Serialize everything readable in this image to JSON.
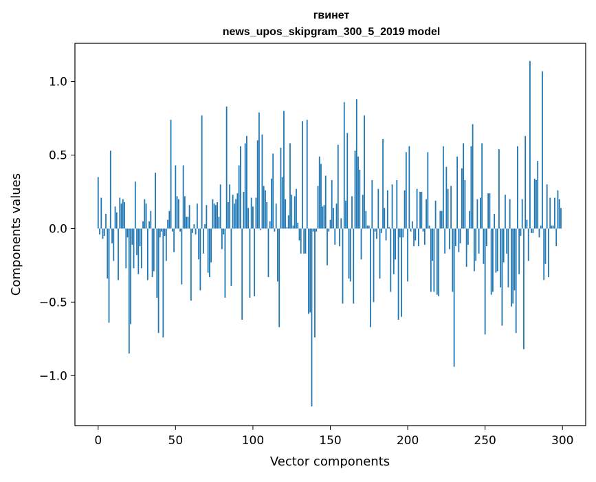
{
  "chart_data": {
    "type": "bar",
    "title_lines": [
      "гвинет",
      "news_upos_skipgram_300_5_2019 model"
    ],
    "xlabel": "Vector components",
    "ylabel": "Components values",
    "xlim": [
      -15,
      315
    ],
    "ylim": [
      -1.34,
      1.26
    ],
    "x_ticks": [
      0,
      50,
      100,
      150,
      200,
      250,
      300
    ],
    "x_tick_labels": [
      "0",
      "50",
      "100",
      "150",
      "200",
      "250",
      "300"
    ],
    "y_ticks": [
      -1.0,
      -0.5,
      0.0,
      0.5,
      1.0
    ],
    "y_tick_labels": [
      "−1.0",
      "−0.5",
      "0.0",
      "0.5",
      "1.0"
    ],
    "grid": false,
    "bar_color": "#1f77b4",
    "x": [
      0,
      1,
      2,
      3,
      4,
      5,
      6,
      7,
      8,
      9,
      10,
      11,
      12,
      13,
      14,
      15,
      16,
      17,
      18,
      19,
      20,
      21,
      22,
      23,
      24,
      25,
      26,
      27,
      28,
      29,
      30,
      31,
      32,
      33,
      34,
      35,
      36,
      37,
      38,
      39,
      40,
      41,
      42,
      43,
      44,
      45,
      46,
      47,
      48,
      49,
      50,
      51,
      52,
      53,
      54,
      55,
      56,
      57,
      58,
      59,
      60,
      61,
      62,
      63,
      64,
      65,
      66,
      67,
      68,
      69,
      70,
      71,
      72,
      73,
      74,
      75,
      76,
      77,
      78,
      79,
      80,
      81,
      82,
      83,
      84,
      85,
      86,
      87,
      88,
      89,
      90,
      91,
      92,
      93,
      94,
      95,
      96,
      97,
      98,
      99,
      100,
      101,
      102,
      103,
      104,
      105,
      106,
      107,
      108,
      109,
      110,
      111,
      112,
      113,
      114,
      115,
      116,
      117,
      118,
      119,
      120,
      121,
      122,
      123,
      124,
      125,
      126,
      127,
      128,
      129,
      130,
      131,
      132,
      133,
      134,
      135,
      136,
      137,
      138,
      139,
      140,
      141,
      142,
      143,
      144,
      145,
      146,
      147,
      148,
      149,
      150,
      151,
      152,
      153,
      154,
      155,
      156,
      157,
      158,
      159,
      160,
      161,
      162,
      163,
      164,
      165,
      166,
      167,
      168,
      169,
      170,
      171,
      172,
      173,
      174,
      175,
      176,
      177,
      178,
      179,
      180,
      181,
      182,
      183,
      184,
      185,
      186,
      187,
      188,
      189,
      190,
      191,
      192,
      193,
      194,
      195,
      196,
      197,
      198,
      199,
      200,
      201,
      202,
      203,
      204,
      205,
      206,
      207,
      208,
      209,
      210,
      211,
      212,
      213,
      214,
      215,
      216,
      217,
      218,
      219,
      220,
      221,
      222,
      223,
      224,
      225,
      226,
      227,
      228,
      229,
      230,
      231,
      232,
      233,
      234,
      235,
      236,
      237,
      238,
      239,
      240,
      241,
      242,
      243,
      244,
      245,
      246,
      247,
      248,
      249,
      250,
      251,
      252,
      253,
      254,
      255,
      256,
      257,
      258,
      259,
      260,
      261,
      262,
      263,
      264,
      265,
      266,
      267,
      268,
      269,
      270,
      271,
      272,
      273,
      274,
      275,
      276,
      277,
      278,
      279,
      280,
      281,
      282,
      283,
      284,
      285,
      286,
      287,
      288,
      289,
      290,
      291,
      292,
      293,
      294,
      295,
      296,
      297,
      298,
      299
    ],
    "values": [
      0.35,
      -0.04,
      0.21,
      -0.07,
      -0.05,
      0.1,
      -0.34,
      -0.64,
      0.53,
      -0.1,
      -0.22,
      0.15,
      0.11,
      -0.35,
      0.21,
      0.17,
      0.2,
      0.18,
      -0.27,
      -0.06,
      -0.85,
      -0.65,
      -0.11,
      -0.27,
      0.32,
      -0.18,
      -0.31,
      -0.12,
      -0.27,
      0.05,
      0.2,
      0.17,
      -0.35,
      0.05,
      0.12,
      -0.33,
      -0.29,
      0.38,
      -0.47,
      -0.71,
      -0.06,
      -0.02,
      -0.74,
      -0.05,
      -0.22,
      0.06,
      0.12,
      0.74,
      -0.02,
      -0.16,
      0.43,
      0.22,
      0.2,
      -0.02,
      -0.38,
      0.43,
      0.22,
      0.08,
      0.08,
      0.16,
      -0.49,
      -0.03,
      0.03,
      -0.04,
      0.17,
      -0.21,
      -0.42,
      0.77,
      -0.17,
      0.03,
      0.16,
      -0.3,
      -0.33,
      -0.23,
      0.2,
      0.17,
      0.16,
      0.18,
      0.08,
      0.3,
      -0.14,
      -0.04,
      -0.47,
      0.83,
      0.18,
      0.3,
      -0.39,
      0.23,
      0.17,
      0.2,
      0.24,
      0.43,
      0.56,
      -0.62,
      0.25,
      0.58,
      0.63,
      0.14,
      -0.47,
      0.21,
      0.15,
      -0.46,
      0.21,
      0.6,
      0.79,
      -0.01,
      0.64,
      0.29,
      0.26,
      0.18,
      -0.33,
      0.05,
      0.34,
      0.51,
      -0.02,
      0.17,
      -0.36,
      -0.67,
      0.55,
      0.35,
      0.8,
      0.2,
      0.01,
      0.09,
      0.58,
      0.23,
      0.02,
      0.22,
      0.27,
      0.04,
      -0.08,
      -0.17,
      0.73,
      -0.17,
      -0.17,
      0.74,
      -0.58,
      -0.57,
      -1.21,
      -0.02,
      -0.74,
      -0.02,
      0.29,
      0.49,
      0.44,
      0.15,
      0.16,
      0.36,
      -0.25,
      -0.02,
      0.06,
      0.33,
      0.14,
      -0.11,
      0.17,
      0.57,
      -0.12,
      0.07,
      -0.51,
      0.86,
      0.19,
      0.65,
      -0.34,
      -0.36,
      0.22,
      -0.51,
      0.53,
      0.88,
      0.49,
      0.4,
      -0.21,
      0.23,
      0.77,
      0.12,
      0.02,
      0.02,
      -0.67,
      0.33,
      -0.5,
      -0.02,
      -0.07,
      0.27,
      -0.34,
      -0.03,
      0.61,
      0.14,
      -0.08,
      0.26,
      0.01,
      -0.43,
      0.3,
      -0.31,
      -0.21,
      0.33,
      -0.62,
      -0.06,
      -0.6,
      -0.06,
      0.26,
      0.52,
      -0.36,
      0.56,
      -0.02,
      0.05,
      -0.12,
      -0.08,
      0.27,
      -0.12,
      0.25,
      0.25,
      -0.02,
      -0.11,
      0.2,
      0.52,
      0.02,
      -0.43,
      -0.22,
      -0.43,
      0.19,
      -0.45,
      -0.46,
      0.12,
      0.12,
      0.56,
      -0.17,
      0.42,
      0.27,
      -0.14,
      0.29,
      -0.43,
      -0.94,
      -0.12,
      0.49,
      -0.16,
      -0.1,
      0.41,
      0.58,
      0.33,
      -0.26,
      -0.11,
      0.12,
      0.56,
      0.71,
      -0.29,
      -0.22,
      0.2,
      -0.17,
      0.21,
      0.58,
      -0.24,
      -0.72,
      -0.12,
      0.24,
      0.24,
      -0.45,
      -0.43,
      0.1,
      -0.3,
      -0.29,
      0.54,
      -0.4,
      -0.66,
      -0.23,
      0.23,
      -0.17,
      -0.4,
      0.2,
      -0.53,
      -0.51,
      -0.42,
      -0.71,
      0.56,
      -0.31,
      -0.05,
      0.2,
      -0.82,
      0.63,
      0.06,
      -0.22,
      1.14,
      -0.03,
      -0.03,
      0.34,
      0.33,
      0.46,
      -0.06,
      0.02,
      1.07,
      -0.35,
      -0.24,
      0.3,
      -0.33,
      0.21,
      0.02,
      0.02,
      0.21,
      -0.12,
      0.26,
      0.2,
      0.14
    ]
  }
}
